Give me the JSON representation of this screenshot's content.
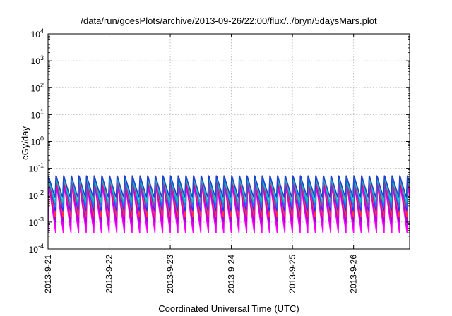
{
  "chart_data": {
    "type": "line",
    "title": "/data/run/goesPlots/archive/2013-09-26/22:00/flux/../bryn/5daysMars.plot",
    "xlabel": "Coordinated Universal Time (UTC)",
    "ylabel": "cGy/day",
    "x_range": [
      "2013-09-21T00:00",
      "2013-09-26T22:00"
    ],
    "x_ticks": [
      "2013-9-21",
      "2013-9-22",
      "2013-9-23",
      "2013-9-24",
      "2013-9-25",
      "2013-9-26"
    ],
    "y_scale": "log",
    "ylim": [
      0.0001,
      10000
    ],
    "y_ticks": [
      {
        "base": "10",
        "exp": "-4"
      },
      {
        "base": "10",
        "exp": "-3"
      },
      {
        "base": "10",
        "exp": "-2"
      },
      {
        "base": "10",
        "exp": "-1"
      },
      {
        "base": "10",
        "exp": "0"
      },
      {
        "base": "10",
        "exp": "1"
      },
      {
        "base": "10",
        "exp": "2"
      },
      {
        "base": "10",
        "exp": "3"
      },
      {
        "base": "10",
        "exp": "4"
      }
    ],
    "grid": true,
    "series_pattern": "repeating sawtooth, 8 cycles per day",
    "series": [
      {
        "color": "#ff00ff",
        "peak": 0.025,
        "trough": 0.0004
      },
      {
        "color": "#dd00ee",
        "peak": 0.03,
        "trough": 0.0006
      },
      {
        "color": "#aa00cc",
        "peak": 0.035,
        "trough": 0.001
      },
      {
        "color": "#ff3344",
        "peak": 0.045,
        "trough": 0.0015
      },
      {
        "color": "#2233ee",
        "peak": 0.055,
        "trough": 0.0025
      },
      {
        "color": "#3366ff",
        "peak": 0.05,
        "trough": 0.0035
      },
      {
        "color": "#11bbbb",
        "peak": 0.045,
        "trough": 0.005
      },
      {
        "color": "#2244cc",
        "peak": 0.055,
        "trough": 0.008
      }
    ]
  }
}
